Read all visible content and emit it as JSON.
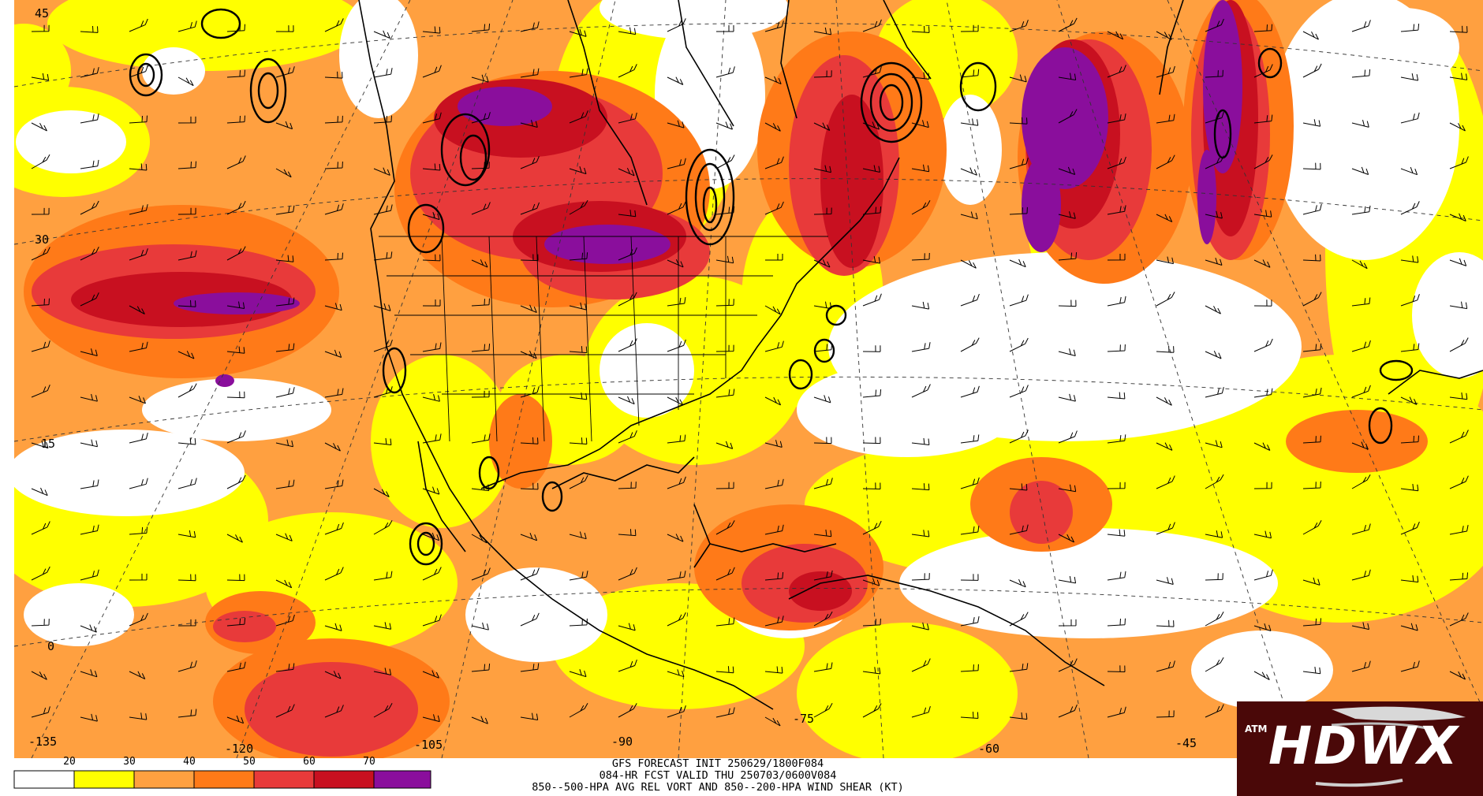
{
  "colors": {
    "bin_20_30": "#ffff00",
    "bin_30_40": "#ffa040",
    "bin_40_50": "#ff7a18",
    "bin_50_60": "#e83a3a",
    "bin_60_70": "#c81020",
    "bin_70_plus": "#8a0e9c",
    "contours": "#000000",
    "coastlines": "#000000",
    "logo_background": "#4a0808"
  },
  "legend": {
    "tick_labels": [
      "20",
      "30",
      "40",
      "50",
      "60",
      "70"
    ]
  },
  "latitude_labels": [
    "45",
    "30",
    "15",
    "0"
  ],
  "longitude_labels": [
    "-135",
    "-120",
    "-105",
    "-90",
    "-75",
    "-60",
    "-45"
  ],
  "caption": {
    "line1": "GFS FORECAST INIT 250629/1800F084",
    "line2": "084-HR FCST VALID THU 250703/0600V084",
    "line3": "850--500-HPA AVG REL VORT AND 850--200-HPA WIND SHEAR (KT)"
  },
  "logo": {
    "text": "HDWX",
    "emblem": "ATM"
  }
}
